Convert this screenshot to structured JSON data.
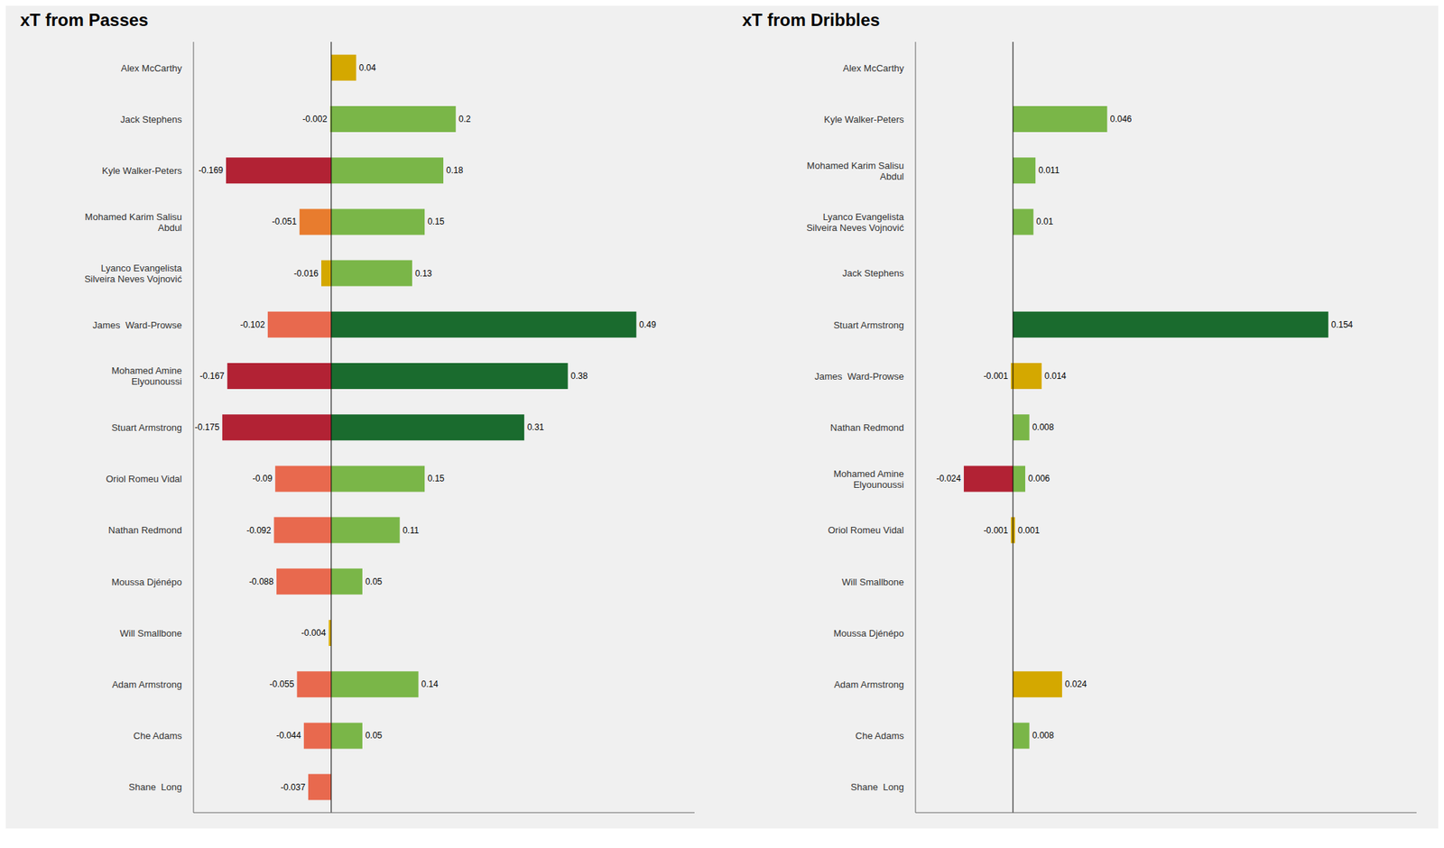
{
  "chart_data": [
    {
      "type": "bar",
      "orientation": "horizontal",
      "stacked": true,
      "data_labels": true,
      "grid": false,
      "tick_labels": "y",
      "title": "xT from Passes",
      "categories": [
        "Alex McCarthy",
        "Jack Stephens",
        "Kyle Walker-Peters",
        "Mohamed Karim Salisu\nAbdul",
        "Lyanco Evangelista\nSilveira Neves Vojnović",
        "James  Ward-Prowse",
        "Mohamed Amine\nElyounoussi",
        "Stuart Armstrong",
        "Oriol Romeu Vidal",
        "Nathan Redmond",
        "Moussa Djénépo",
        "Will Smallbone",
        "Adam Armstrong",
        "Che Adams",
        "Shane  Long"
      ],
      "xlim": [
        -0.22125,
        0.5835
      ],
      "series": [
        {
          "values": [
            0,
            -0.002,
            -0.169,
            -0.051,
            -0.016,
            -0.102,
            -0.167,
            -0.175,
            -0.09,
            -0.092,
            -0.088,
            -0.004,
            -0.055,
            -0.044,
            -0.037
          ],
          "colors": [
            "#c8c8c8",
            "#b5d46c",
            "#b22234",
            "#e87c2e",
            "#d4a800",
            "#e8694e",
            "#b22234",
            "#b22234",
            "#e8694e",
            "#e8694e",
            "#e8694e",
            "#d4a800",
            "#e8694e",
            "#e8694e",
            "#e8694e"
          ]
        },
        {
          "values": [
            0.04,
            0.2,
            0.18,
            0.15,
            0.13,
            0.49,
            0.38,
            0.31,
            0.15,
            0.11,
            0.05,
            0,
            0.14,
            0.05,
            0
          ],
          "colors": [
            "#d4a800",
            "#7ab648",
            "#7ab648",
            "#7ab648",
            "#7ab648",
            "#1a6b2e",
            "#1a6b2e",
            "#1a6b2e",
            "#7ab648",
            "#7ab648",
            "#7ab648",
            "#d4a800",
            "#7ab648",
            "#7ab648",
            "#d4a800"
          ]
        }
      ]
    },
    {
      "type": "bar",
      "orientation": "horizontal",
      "stacked": true,
      "data_labels": true,
      "grid": false,
      "tick_labels": "y",
      "title": "xT from Dribbles",
      "categories": [
        "Alex McCarthy",
        "Kyle Walker-Peters",
        "Mohamed Karim Salisu\nAbdul",
        "Lyanco Evangelista\nSilveira Neves Vojnović",
        "Jack Stephens",
        "Stuart Armstrong",
        "James  Ward-Prowse",
        "Nathan Redmond",
        "Mohamed Amine\nElyounoussi",
        "Oriol Romeu Vidal",
        "Will Smallbone",
        "Moussa Djénépo",
        "Adam Armstrong",
        "Che Adams",
        "Shane  Long"
      ],
      "xlim": [
        -0.0476,
        0.1971
      ],
      "series": [
        {
          "values": [
            0,
            0,
            0,
            0,
            0,
            0,
            -0.001,
            0,
            -0.024,
            -0.001,
            0,
            0,
            0,
            0,
            0
          ],
          "colors": [
            "#c8c8c8",
            "#c8c8c8",
            "#c8c8c8",
            "#c8c8c8",
            "#c8c8c8",
            "#c8c8c8",
            "#d4a800",
            "#c8c8c8",
            "#b22234",
            "#d4a800",
            "#c8c8c8",
            "#c8c8c8",
            "#c8c8c8",
            "#c8c8c8",
            "#c8c8c8"
          ]
        },
        {
          "values": [
            0,
            0.046,
            0.011,
            0.01,
            0,
            0.154,
            0.014,
            0.008,
            0.006,
            0.001,
            0,
            0,
            0.024,
            0.008,
            0
          ],
          "colors": [
            "#c8c8c8",
            "#7ab648",
            "#7ab648",
            "#7ab648",
            "#c8c8c8",
            "#1a6b2e",
            "#d4a800",
            "#7ab648",
            "#7ab648",
            "#d4a800",
            "#c8c8c8",
            "#c8c8c8",
            "#d4a800",
            "#7ab648",
            "#c8c8c8"
          ]
        }
      ]
    }
  ]
}
